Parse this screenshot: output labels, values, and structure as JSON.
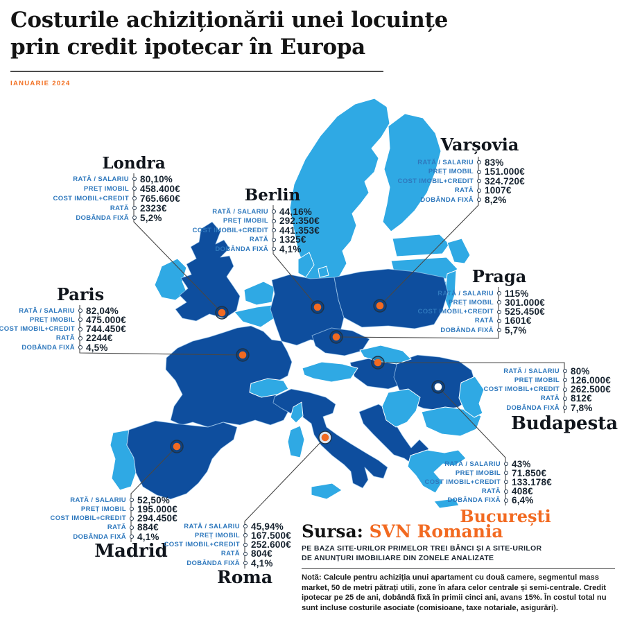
{
  "title": {
    "line1": "Costurile achiziționării unei locuințe",
    "line2": "prin credit ipotecar în Europa",
    "date": "IANUARIE 2024"
  },
  "metric_labels": [
    "RATĂ / SALARIU",
    "PREȚ IMOBIL",
    "COST IMOBIL+CREDIT",
    "RATĂ",
    "DOBÂNDA FIXĂ"
  ],
  "cities": [
    {
      "id": "londra",
      "name": "Londra",
      "values": [
        "80,10%",
        "458.400€",
        "765.660€",
        "2323€",
        "5,2%"
      ]
    },
    {
      "id": "berlin",
      "name": "Berlin",
      "values": [
        "44,16%",
        "292.350€",
        "441.353€",
        "1325€",
        "4,1%"
      ]
    },
    {
      "id": "varsovia",
      "name": "Varșovia",
      "values": [
        "83%",
        "151.000€",
        "324.720€",
        "1007€",
        "8,2%"
      ]
    },
    {
      "id": "praga",
      "name": "Praga",
      "values": [
        "115%",
        "301.000€",
        "525.450€",
        "1601€",
        "5,7%"
      ]
    },
    {
      "id": "paris",
      "name": "Paris",
      "values": [
        "82,04%",
        "475.000€",
        "744.450€",
        "2244€",
        "4,5%"
      ]
    },
    {
      "id": "budapesta",
      "name": "Budapesta",
      "values": [
        "80%",
        "126.000€",
        "262.500€",
        "812€",
        "7,8%"
      ]
    },
    {
      "id": "bucuresti",
      "name": "București",
      "name_color": "#F26A21",
      "values": [
        "43%",
        "71.850€",
        "133.178€",
        "408€",
        "6,4%"
      ]
    },
    {
      "id": "madrid",
      "name": "Madrid",
      "values": [
        "52,50%",
        "195.000€",
        "294.450€",
        "884€",
        "4,1%"
      ]
    },
    {
      "id": "roma",
      "name": "Roma",
      "values": [
        "45,94%",
        "167.500€",
        "252.600€",
        "804€",
        "4,1%"
      ]
    }
  ],
  "source": {
    "prefix": "Sursa:",
    "name": "SVN Romania",
    "line1": "PE BAZA SITE-URILOR PRIMELOR TREI BĂNCI ȘI A SITE-URILOR",
    "line2": "DE ANUNȚURI IMOBILIARE DIN ZONELE ANALIZATE",
    "note": "Notă: Calcule pentru achiziția unui apartament cu două camere, segmentul mass market, 50 de metri pătrați utili, zone în afara celor centrale și semi-centrale. Credit ipotecar pe 25 de ani, dobândă fixă în primii cinci ani, avans 15%. În costul total nu sunt incluse costurile asociate (comisioane, taxe notariale, asigurări)."
  },
  "colors": {
    "country_highlight": "#0E4E9E",
    "country_base": "#2FA9E4",
    "accent_orange": "#F26A21",
    "label_blue": "#2E78BD",
    "value_dark": "#17232F"
  }
}
